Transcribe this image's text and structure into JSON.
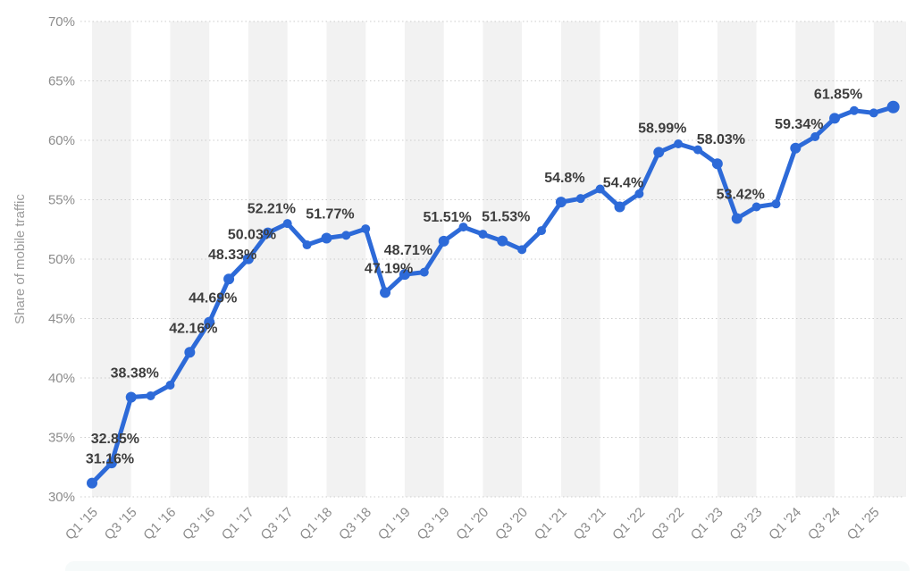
{
  "chart_data": {
    "type": "line",
    "title": "",
    "ylabel": "Share of mobile traffic",
    "series_name": "Share of mobile traffic",
    "x": [
      "Q1 '15",
      "Q2 '15",
      "Q3 '15",
      "Q4 '15",
      "Q1 '16",
      "Q2 '16",
      "Q3 '16",
      "Q4 '16",
      "Q1 '17",
      "Q2 '17",
      "Q3 '17",
      "Q4 '17",
      "Q1 '18",
      "Q2 '18",
      "Q3 '18",
      "Q4 '18",
      "Q1 '19",
      "Q2 '19",
      "Q3 '19",
      "Q4 '19",
      "Q1 '20",
      "Q2 '20",
      "Q3 '20",
      "Q4 '20",
      "Q1 '21",
      "Q2 '21",
      "Q3 '21",
      "Q4 '21",
      "Q1 '22",
      "Q2 '22",
      "Q3 '22",
      "Q4 '22",
      "Q1 '23",
      "Q2 '23",
      "Q3 '23",
      "Q4 '23",
      "Q1 '24",
      "Q2 '24",
      "Q3 '24",
      "Q4 '24",
      "Q1 '25",
      "Q2 '25"
    ],
    "values": [
      31.16,
      32.85,
      38.38,
      38.5,
      39.4,
      42.16,
      44.69,
      48.33,
      50.03,
      52.21,
      53.0,
      51.2,
      51.77,
      52.0,
      52.55,
      47.19,
      48.71,
      48.9,
      51.51,
      52.7,
      52.1,
      51.53,
      50.8,
      52.4,
      54.8,
      55.1,
      55.9,
      54.4,
      55.5,
      58.99,
      59.7,
      59.2,
      58.03,
      53.42,
      54.4,
      54.65,
      59.34,
      60.3,
      61.85,
      62.5,
      62.3,
      62.8
    ],
    "labels": [
      "31.16%",
      "32.85%",
      "38.38%",
      null,
      null,
      "42.16%",
      "44.69%",
      "48.33%",
      "50.03%",
      "52.21%",
      null,
      null,
      "51.77%",
      null,
      null,
      "47.19%",
      "48.71%",
      null,
      "51.51%",
      null,
      null,
      "51.53%",
      null,
      null,
      "54.8%",
      null,
      null,
      "54.4%",
      null,
      "58.99%",
      null,
      null,
      "58.03%",
      "53.42%",
      null,
      null,
      "59.34%",
      null,
      "61.85%",
      null,
      null,
      null
    ],
    "x_tick_labels": [
      "Q1 '15",
      "Q3 '15",
      "Q1 '16",
      "Q3 '16",
      "Q1 '17",
      "Q3 '17",
      "Q1 '18",
      "Q3 '18",
      "Q1 '19",
      "Q3 '19",
      "Q1 '20",
      "Q3 '20",
      "Q1 '21",
      "Q3 '21",
      "Q1 '22",
      "Q3 '22",
      "Q1 '23",
      "Q3 '23",
      "Q1 '24",
      "Q3 '24",
      "Q1 '25"
    ],
    "y_ticks": [
      "70%",
      "65%",
      "60%",
      "55%",
      "50%",
      "45%",
      "40%",
      "35%",
      "30%"
    ],
    "ylim": [
      30,
      70
    ],
    "y_tick_step": 5,
    "grid": "dotted-horizontal",
    "plot_bands": "alternating-vertical-half-year",
    "legend_position": "none",
    "colors": {
      "line": "#2d6ad8",
      "point_label": "#3d3d3d",
      "axis_label": "#8c8c8c",
      "axis_title": "#9a9a9a",
      "grid": "#cccccc",
      "band": "#f2f2f2",
      "background": "#ffffff",
      "footer_strip": "#f6fafa"
    }
  }
}
